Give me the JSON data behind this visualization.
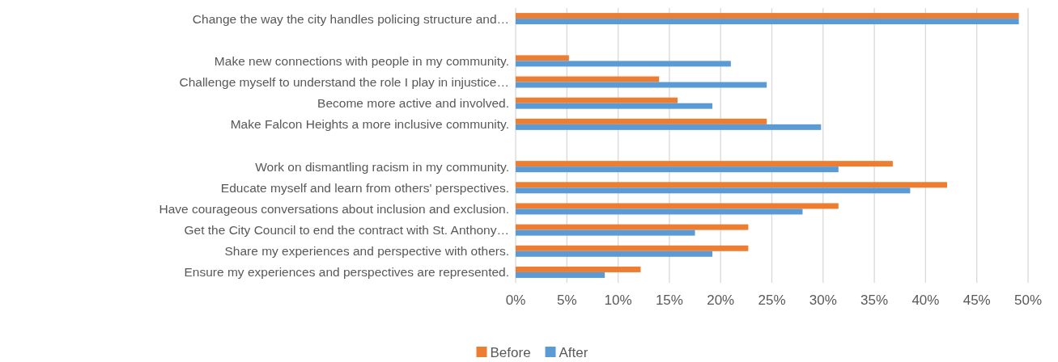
{
  "chart_data": {
    "type": "bar",
    "orientation": "horizontal",
    "categories": [
      "Change the way the city handles policing structure and…",
      null,
      "Make new connections with people in my community.",
      "Challenge myself to understand the role I play in injustice…",
      "Become more active and involved.",
      "Make Falcon Heights a more inclusive community.",
      null,
      "Work on dismantling racism in my community.",
      "Educate myself and learn from others' perspectives.",
      "Have courageous conversations about inclusion and exclusion.",
      "Get the City Council to end the contract with St. Anthony…",
      "Share my experiences and perspective with others.",
      "Ensure my experiences and perspectives are represented."
    ],
    "series": [
      {
        "name": "Before",
        "color": "#ed7d31",
        "values": [
          49.1,
          null,
          5.2,
          14.0,
          15.8,
          24.5,
          null,
          36.8,
          42.1,
          31.5,
          22.7,
          22.7,
          12.2
        ]
      },
      {
        "name": "After",
        "color": "#5b9bd5",
        "values": [
          49.1,
          null,
          21.0,
          24.5,
          19.2,
          29.8,
          null,
          31.5,
          38.5,
          28.0,
          17.5,
          19.2,
          8.7
        ]
      }
    ],
    "xlim": [
      0,
      50
    ],
    "xticks": [
      {
        "value": 0,
        "label": "0%"
      },
      {
        "value": 5,
        "label": "5%"
      },
      {
        "value": 10,
        "label": "10%"
      },
      {
        "value": 15,
        "label": "15%"
      },
      {
        "value": 20,
        "label": "20%"
      },
      {
        "value": 25,
        "label": "25%"
      },
      {
        "value": 30,
        "label": "30%"
      },
      {
        "value": 35,
        "label": "35%"
      },
      {
        "value": 40,
        "label": "40%"
      },
      {
        "value": 45,
        "label": "45%"
      },
      {
        "value": 50,
        "label": "50%"
      }
    ],
    "grid": "x",
    "legend": "bottom"
  }
}
